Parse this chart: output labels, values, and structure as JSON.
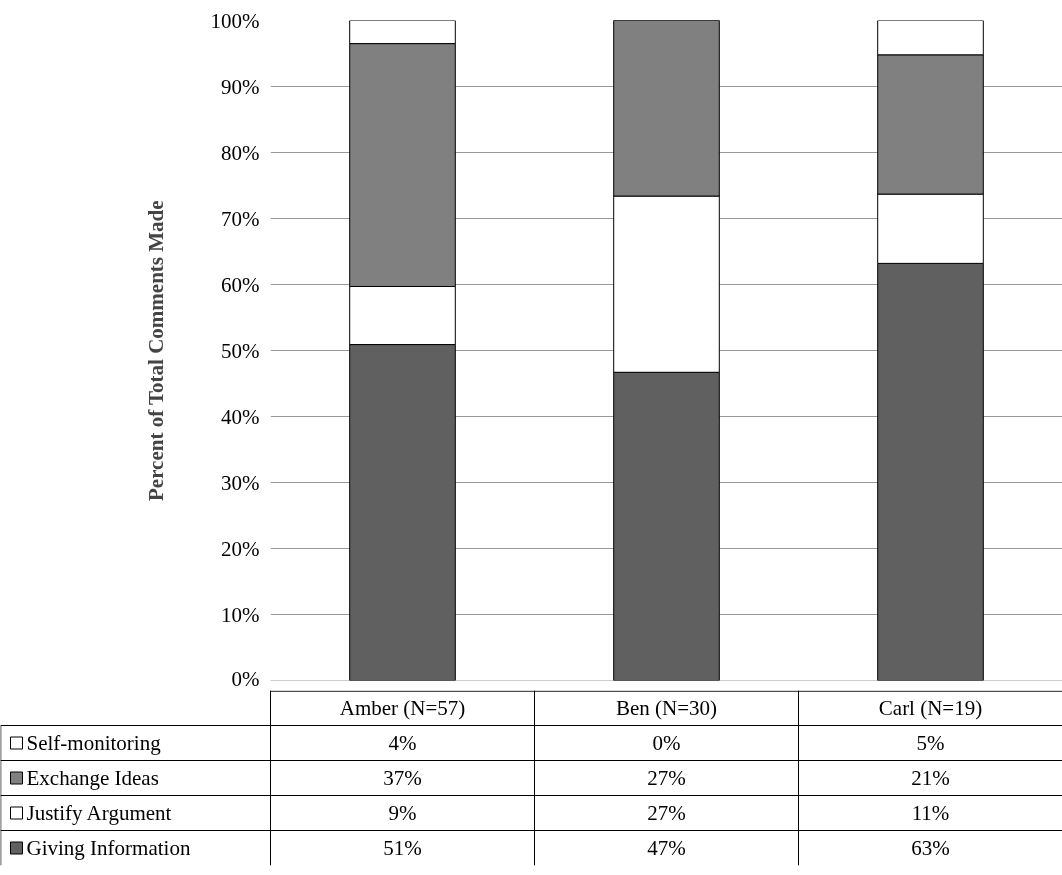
{
  "chart_data": {
    "type": "bar",
    "stacked": true,
    "ylabel": "Percent of Total Comments Made",
    "categories": [
      "Amber (N=57)",
      "Ben (N=30)",
      "Carl (N=19)"
    ],
    "series": [
      {
        "name": "Giving Information",
        "color": "#606060",
        "values": [
          50.9,
          46.7,
          63.2
        ],
        "value_labels": [
          "51%",
          "47%",
          "63%"
        ]
      },
      {
        "name": "Justify Argument",
        "color": "#ffffff",
        "values": [
          8.8,
          26.7,
          10.5
        ],
        "value_labels": [
          "9%",
          "27%",
          "11%"
        ]
      },
      {
        "name": "Exchange Ideas",
        "color": "#808080",
        "values": [
          36.8,
          26.7,
          21.1
        ],
        "value_labels": [
          "37%",
          "27%",
          "21%"
        ]
      },
      {
        "name": "Self-monitoring",
        "color": "#ffffff",
        "values": [
          3.5,
          0,
          5.3
        ],
        "value_labels": [
          "4%",
          "0%",
          "5%"
        ]
      }
    ],
    "ylim": [
      0,
      100
    ],
    "yticks": [
      {
        "value": 0,
        "label": "0%"
      },
      {
        "value": 10,
        "label": "10%"
      },
      {
        "value": 20,
        "label": "20%"
      },
      {
        "value": 30,
        "label": "30%"
      },
      {
        "value": 40,
        "label": "40%"
      },
      {
        "value": 50,
        "label": "50%"
      },
      {
        "value": 60,
        "label": "60%"
      },
      {
        "value": 70,
        "label": "70%"
      },
      {
        "value": 80,
        "label": "80%"
      },
      {
        "value": 90,
        "label": "90%"
      },
      {
        "value": 100,
        "label": "100%"
      }
    ],
    "grid": "y",
    "legend": "bottom"
  }
}
